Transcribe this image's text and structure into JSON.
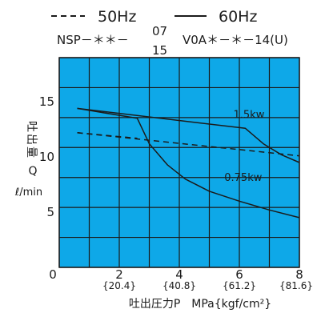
{
  "chart_data": {
    "type": "line",
    "legend": {
      "placement": "top",
      "entries": [
        {
          "label": "50Hz",
          "line_style": "dashed"
        },
        {
          "label": "60Hz",
          "line_style": "solid"
        }
      ]
    },
    "model": {
      "prefix": "NSP－＊＊－",
      "stack_top": "07",
      "stack_bottom": "15",
      "suffix": "V0A＊－＊－14(U)"
    },
    "xlabel": "吐出圧力P　MPa{kgf/cm²}",
    "ylabel_chars": [
      "吐",
      "出",
      "量"
    ],
    "ylabel_letter": "Q",
    "yunit": "ℓ/min",
    "xlim": [
      0,
      8
    ],
    "ylim": [
      0,
      19
    ],
    "grid": true,
    "plot_bg": "#0ea8e8",
    "grid_color": "#1b1b1b",
    "line_color": "#1b1b1b",
    "x_ticks": [
      {
        "value": 0,
        "label": "0",
        "sub": ""
      },
      {
        "value": 2,
        "label": "2",
        "sub": "{20.4}"
      },
      {
        "value": 4,
        "label": "4",
        "sub": "{40.8}"
      },
      {
        "value": 6,
        "label": "6",
        "sub": "{61.2}"
      },
      {
        "value": 8,
        "label": "8",
        "sub": "{81.6}"
      }
    ],
    "y_ticks": [
      {
        "value": 5,
        "label": "5"
      },
      {
        "value": 10,
        "label": "10"
      },
      {
        "value": 15,
        "label": "15"
      }
    ],
    "series": [
      {
        "label": "1.5kw",
        "style": "solid",
        "points": [
          [
            0.6,
            14.4
          ],
          [
            6.2,
            12.6
          ],
          [
            6.8,
            11.2
          ],
          [
            7.4,
            10.2
          ],
          [
            8.0,
            9.5
          ]
        ],
        "label_at": [
          5.8,
          13.9
        ]
      },
      {
        "label": "0.75kw",
        "style": "solid",
        "points": [
          [
            0.6,
            14.4
          ],
          [
            2.6,
            13.5
          ],
          [
            3.0,
            11.2
          ],
          [
            3.6,
            9.3
          ],
          [
            4.2,
            8.0
          ],
          [
            5.0,
            6.9
          ],
          [
            6.0,
            6.0
          ],
          [
            7.0,
            5.2
          ],
          [
            8.0,
            4.5
          ]
        ],
        "label_at": [
          5.5,
          8.2
        ]
      },
      {
        "label": "",
        "style": "dashed",
        "points": [
          [
            0.6,
            12.2
          ],
          [
            8.0,
            10.1
          ]
        ]
      },
      {
        "label": "",
        "style": "dashed",
        "points": [
          [
            0.6,
            12.2
          ],
          [
            2.6,
            11.7
          ]
        ]
      }
    ]
  }
}
